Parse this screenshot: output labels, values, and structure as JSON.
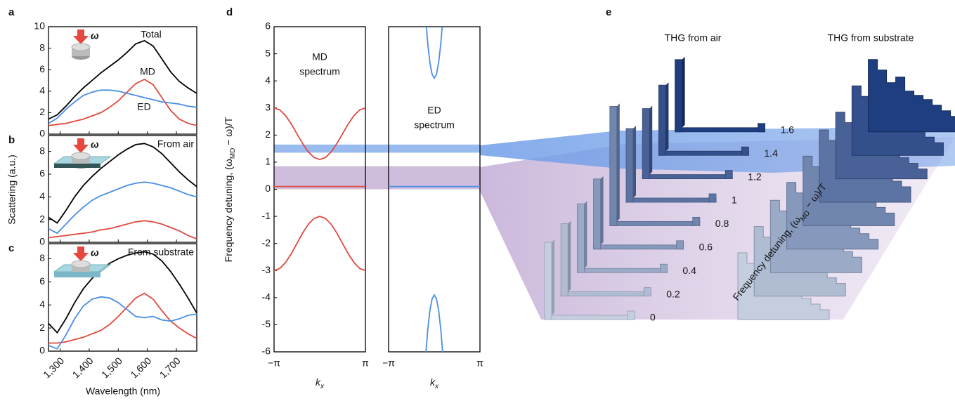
{
  "chart_data": [
    {
      "type": "line",
      "label": "a",
      "icon_label": "ω",
      "x": [
        1260,
        1290,
        1320,
        1350,
        1380,
        1410,
        1440,
        1470,
        1500,
        1530,
        1560,
        1590,
        1620,
        1650,
        1680,
        1710,
        1740,
        1770
      ],
      "series": [
        {
          "name": "Total",
          "color": "#000000",
          "values": [
            1.4,
            1.8,
            2.6,
            3.5,
            4.3,
            5.0,
            5.7,
            6.3,
            6.9,
            7.6,
            8.4,
            8.7,
            8.2,
            7.0,
            5.8,
            4.9,
            4.3,
            3.8
          ]
        },
        {
          "name": "MD",
          "color": "#e1493e",
          "values": [
            0.8,
            0.9,
            1.0,
            1.2,
            1.4,
            1.7,
            2.0,
            2.5,
            3.1,
            3.9,
            4.7,
            5.1,
            4.6,
            3.4,
            2.2,
            1.4,
            1.0,
            0.8
          ]
        },
        {
          "name": "ED",
          "color": "#4a8ee3",
          "values": [
            1.0,
            1.5,
            2.3,
            3.0,
            3.6,
            3.9,
            4.1,
            4.1,
            4.0,
            3.8,
            3.6,
            3.4,
            3.2,
            3.0,
            2.9,
            2.8,
            2.6,
            2.5
          ]
        }
      ],
      "xlim": [
        1260,
        1770
      ],
      "xticks": [
        1300,
        1400,
        1500,
        1600,
        1700
      ],
      "ylim": [
        0,
        10
      ],
      "yticks": [
        0,
        2,
        4,
        6,
        8,
        10
      ]
    },
    {
      "type": "line",
      "label": "b",
      "icon_label": "ω",
      "annotation": "From air",
      "ylabel": "Scattering (a.u.)",
      "x": [
        1260,
        1290,
        1320,
        1350,
        1380,
        1410,
        1440,
        1470,
        1500,
        1530,
        1560,
        1590,
        1620,
        1650,
        1680,
        1710,
        1740,
        1770
      ],
      "series": [
        {
          "color": "#000000",
          "values": [
            2.2,
            1.7,
            2.8,
            4.0,
            5.0,
            5.8,
            6.5,
            7.1,
            7.7,
            8.2,
            8.6,
            8.7,
            8.4,
            7.8,
            7.0,
            6.2,
            5.5,
            4.9
          ]
        },
        {
          "color": "#e1493e",
          "values": [
            0.4,
            0.5,
            0.6,
            0.7,
            0.8,
            0.9,
            1.1,
            1.2,
            1.4,
            1.6,
            1.8,
            1.9,
            1.8,
            1.6,
            1.3,
            1.0,
            0.6,
            0.3
          ]
        },
        {
          "color": "#4a8ee3",
          "values": [
            1.2,
            0.8,
            1.6,
            2.4,
            3.1,
            3.7,
            4.1,
            4.4,
            4.7,
            5.0,
            5.2,
            5.3,
            5.2,
            5.0,
            4.8,
            4.5,
            4.2,
            4.0
          ]
        }
      ],
      "xlim": [
        1260,
        1770
      ],
      "xticks": [
        1300,
        1400,
        1500,
        1600,
        1700
      ],
      "ylim": [
        0,
        9.4
      ],
      "yticks": [
        0,
        2,
        4,
        6,
        8
      ]
    },
    {
      "type": "line",
      "label": "c",
      "icon_label": "ω",
      "annotation": "From substrate",
      "xlabel": "Wavelength (nm)",
      "x": [
        1260,
        1290,
        1320,
        1350,
        1380,
        1410,
        1440,
        1470,
        1500,
        1530,
        1560,
        1590,
        1620,
        1650,
        1680,
        1710,
        1740,
        1770
      ],
      "series": [
        {
          "color": "#000000",
          "values": [
            2.4,
            1.6,
            2.8,
            4.2,
            5.4,
            6.3,
            7.0,
            7.6,
            8.0,
            8.3,
            8.5,
            8.6,
            8.4,
            7.8,
            6.9,
            5.8,
            4.6,
            3.3
          ]
        },
        {
          "color": "#e1493e",
          "values": [
            0.7,
            0.7,
            0.8,
            1.0,
            1.2,
            1.5,
            1.8,
            2.3,
            3.0,
            3.8,
            4.6,
            5.0,
            4.5,
            3.5,
            2.6,
            2.0,
            1.5,
            1.1
          ]
        },
        {
          "color": "#4a8ee3",
          "values": [
            0.5,
            0.2,
            1.4,
            2.8,
            3.9,
            4.5,
            4.7,
            4.6,
            4.2,
            3.6,
            3.0,
            2.9,
            3.0,
            2.7,
            2.6,
            2.8,
            3.1,
            3.2
          ]
        }
      ],
      "xlim": [
        1260,
        1770
      ],
      "xticks": [
        {
          "value": 1300,
          "label": "1,300"
        },
        {
          "value": 1400,
          "label": "1,400"
        },
        {
          "value": 1500,
          "label": "1,500"
        },
        {
          "value": 1600,
          "label": "1,600"
        },
        {
          "value": 1700,
          "label": "1,700"
        }
      ],
      "ylim": [
        0,
        9.3
      ],
      "yticks": [
        0,
        2,
        4,
        6,
        8
      ]
    },
    {
      "type": "line",
      "label": "d",
      "annotation": [
        "MD",
        "spectrum"
      ],
      "ylabel": [
        "Frequency detuning, (ω",
        "MD",
        " − ω)/T"
      ],
      "xlabel": [
        "k",
        "x"
      ],
      "x": [
        -3.1416,
        -2.7489,
        -2.3562,
        -1.9635,
        -1.5708,
        -1.1781,
        -0.7854,
        -0.3927,
        0,
        0.3927,
        0.7854,
        1.1781,
        1.5708,
        1.9635,
        2.3562,
        2.7489,
        3.1416
      ],
      "series": [
        {
          "color": "#e1493e",
          "values": [
            3,
            2.928,
            2.722,
            2.414,
            2.05,
            1.686,
            1.378,
            1.172,
            1.1,
            1.172,
            1.378,
            1.686,
            2.05,
            2.414,
            2.722,
            2.928,
            3
          ]
        },
        {
          "color": "#e1493e",
          "values": [
            0.1,
            0.1,
            0.1,
            0.1,
            0.1,
            0.1,
            0.1,
            0.1,
            0.1,
            0.1,
            0.1,
            0.1,
            0.1,
            0.1,
            0.1,
            0.1,
            0.1
          ]
        },
        {
          "color": "#e1493e",
          "values": [
            -3,
            -2.924,
            -2.707,
            -2.383,
            -2,
            -1.617,
            -1.293,
            -1.076,
            -1,
            -1.076,
            -1.293,
            -1.617,
            -2,
            -2.383,
            -2.707,
            -2.924,
            -3
          ]
        }
      ],
      "bands": [
        {
          "from": 1.35,
          "to": 1.65,
          "color": "#6f9ee8"
        },
        {
          "from": 0,
          "to": 0.85,
          "color": "#b9a1cf"
        }
      ],
      "xlim": [
        -3.1416,
        3.1416
      ],
      "xticks": [
        {
          "value": -3.1416,
          "label": "−π"
        },
        {
          "value": 3.1416,
          "label": "π"
        }
      ],
      "ylim": [
        -6,
        6
      ],
      "yticks": [
        -6,
        -5,
        -4,
        -3,
        -2,
        -1,
        0,
        1,
        2,
        3,
        4,
        5,
        6
      ]
    },
    {
      "type": "line",
      "annotation": [
        "ED",
        "spectrum"
      ],
      "xlabel": [
        "k",
        "x"
      ],
      "x": [
        -3.1416,
        -0.6,
        -0.45,
        -0.3,
        -0.15,
        0,
        0.15,
        0.3,
        0.45,
        0.6,
        3.1416
      ],
      "series": [
        {
          "color": "#4a8ee3",
          "values": [
            null,
            6.37,
            5.38,
            4.67,
            4.24,
            4.1,
            4.24,
            4.67,
            5.38,
            6.37,
            null
          ]
        },
        {
          "color": "#4a8ee3",
          "values": [
            0.1,
            0.1,
            0.1,
            0.1,
            0.1,
            0.1,
            0.1,
            0.1,
            0.1,
            0.1,
            0.1
          ]
        },
        {
          "color": "#4a8ee3",
          "values": [
            null,
            -6.17,
            -5.18,
            -4.47,
            -4.04,
            -3.9,
            -4.04,
            -4.47,
            -5.18,
            -6.17,
            null
          ]
        }
      ],
      "xlim": [
        -3.1416,
        3.1416
      ],
      "xticks": [
        {
          "value": -3.1416,
          "label": "−π"
        },
        {
          "value": 3.1416,
          "label": "π"
        }
      ],
      "ylim": [
        -6,
        6
      ]
    },
    {
      "type": "bar3d",
      "label": "e",
      "titles": [
        "THG from air",
        "THG from substrate"
      ],
      "ylabel": [
        "Frequency detuning, (ω",
        "MD",
        " − ω)/T"
      ],
      "levels": [
        0,
        0.2,
        0.4,
        0.6,
        0.8,
        1,
        1.2,
        1.4,
        1.6
      ]
    }
  ]
}
